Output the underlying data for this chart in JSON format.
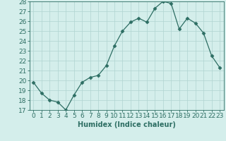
{
  "x": [
    0,
    1,
    2,
    3,
    4,
    5,
    6,
    7,
    8,
    9,
    10,
    11,
    12,
    13,
    14,
    15,
    16,
    17,
    18,
    19,
    20,
    21,
    22,
    23
  ],
  "y": [
    19.8,
    18.7,
    18.0,
    17.8,
    17.0,
    18.5,
    19.8,
    20.3,
    20.5,
    21.5,
    23.5,
    25.0,
    25.9,
    26.3,
    25.9,
    27.3,
    28.0,
    27.8,
    25.2,
    26.3,
    25.8,
    24.8,
    22.5,
    21.3
  ],
  "xlabel": "Humidex (Indice chaleur)",
  "xlim": [
    -0.5,
    23.5
  ],
  "ylim": [
    17,
    28
  ],
  "yticks": [
    17,
    18,
    19,
    20,
    21,
    22,
    23,
    24,
    25,
    26,
    27,
    28
  ],
  "xticks": [
    0,
    1,
    2,
    3,
    4,
    5,
    6,
    7,
    8,
    9,
    10,
    11,
    12,
    13,
    14,
    15,
    16,
    17,
    18,
    19,
    20,
    21,
    22,
    23
  ],
  "line_color": "#2d6e63",
  "marker": "D",
  "marker_size": 2.5,
  "bg_color": "#d4eeeb",
  "grid_color": "#b0d4d0",
  "label_fontsize": 7,
  "tick_fontsize": 6.5
}
